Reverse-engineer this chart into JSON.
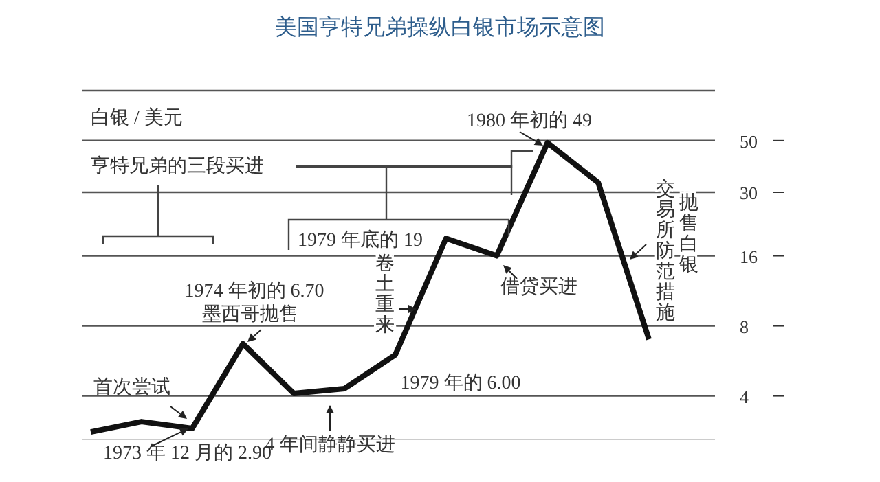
{
  "chart_data": {
    "type": "line",
    "title": "美国亨特兄弟操纵白银市场示意图",
    "ylabel": "白银 / 美元",
    "categories": [
      null,
      null,
      null,
      null,
      null,
      null,
      null,
      null,
      null,
      null,
      null,
      null
    ],
    "series": [
      {
        "color": "#111111",
        "values": [
          2.8,
          3.1,
          2.9,
          6.7,
          4.1,
          4.3,
          6.0,
          19,
          16,
          49,
          33,
          7.0
        ]
      }
    ],
    "log": "y",
    "ylim": [
      2.6,
      82
    ],
    "yticks": [
      4,
      8,
      16,
      30,
      50
    ],
    "grid": "y",
    "tick_labels": "y",
    "marker": "none",
    "line_style": "solid",
    "legend": false,
    "annotations": [
      "1980 年初的 49",
      "亨特兄弟的三段买进",
      "1979 年底的 19",
      "1974 年初的 6.70",
      "墨西哥抛售",
      "卷土重来",
      "借贷买进",
      "首次尝试",
      "1979 年的 6.00",
      "1973 年 12 月的 2.90",
      "4 年间静静买进",
      "抛售白银",
      "交易所防范措施"
    ]
  }
}
